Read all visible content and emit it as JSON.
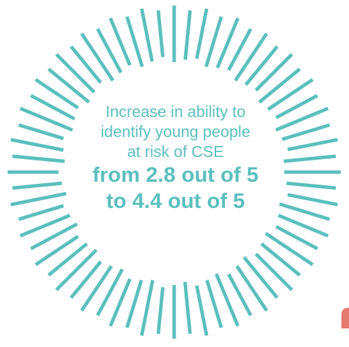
{
  "stat": {
    "line1": "Increase in ability to",
    "line2": "identify young people",
    "line3": "at risk of CSE",
    "line4": "from 2.8 out of 5",
    "line5": "to 4.4 out of 5"
  },
  "colors": {
    "accent": "#5bbfbd",
    "edge_mark": "#e57a6e"
  },
  "icons": {
    "burst": "sunburst-ring"
  }
}
